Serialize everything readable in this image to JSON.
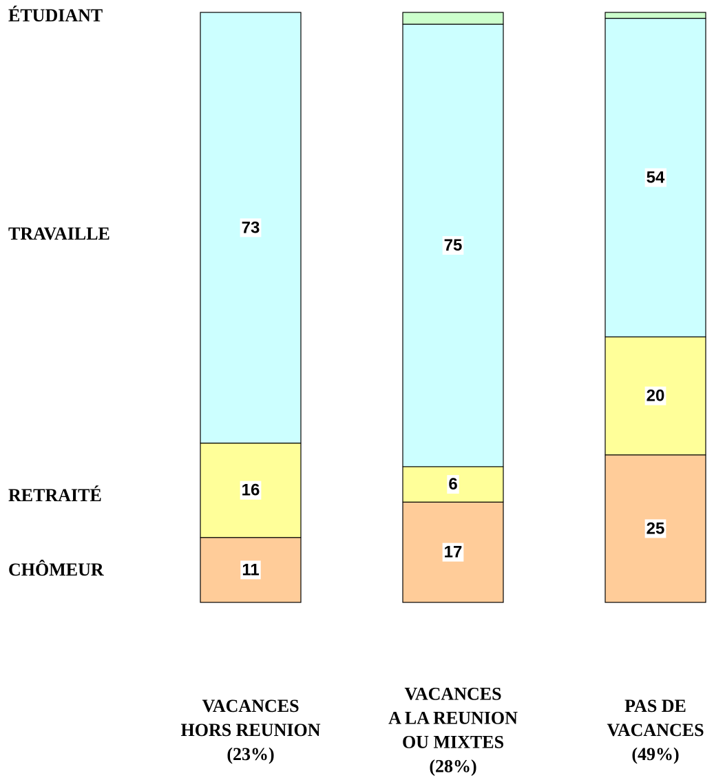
{
  "chart_data": {
    "type": "stacked_bar",
    "categories": [
      [
        "VACANCES",
        "HORS REUNION",
        "(23%)"
      ],
      [
        "VACANCES",
        "A LA REUNION",
        "OU MIXTES",
        "(28%)"
      ],
      [
        "PAS DE",
        "VACANCES",
        "(49%)"
      ]
    ],
    "series": [
      {
        "name": "CHÔMEUR",
        "color": "#ffcc99",
        "values": [
          11,
          17,
          25
        ]
      },
      {
        "name": "RETRAITÉ",
        "color": "#ffff99",
        "values": [
          16,
          6,
          20
        ]
      },
      {
        "name": "TRAVAILLE",
        "color": "#ccffff",
        "values": [
          73,
          75,
          54
        ]
      },
      {
        "name": "ÉTUDIANT",
        "color": "#ccffcc",
        "values": [
          0,
          2,
          1
        ]
      }
    ],
    "labeled_series": [
      0,
      1,
      2
    ],
    "ylim": [
      0,
      100
    ]
  }
}
